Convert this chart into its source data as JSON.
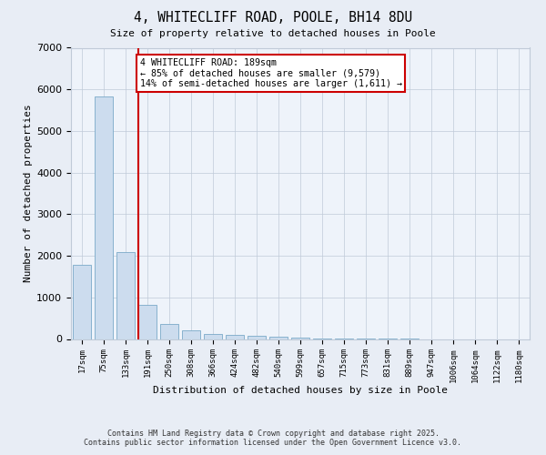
{
  "title": "4, WHITECLIFF ROAD, POOLE, BH14 8DU",
  "subtitle": "Size of property relative to detached houses in Poole",
  "xlabel": "Distribution of detached houses by size in Poole",
  "ylabel": "Number of detached properties",
  "categories": [
    "17sqm",
    "75sqm",
    "133sqm",
    "191sqm",
    "250sqm",
    "308sqm",
    "366sqm",
    "424sqm",
    "482sqm",
    "540sqm",
    "599sqm",
    "657sqm",
    "715sqm",
    "773sqm",
    "831sqm",
    "889sqm",
    "947sqm",
    "1006sqm",
    "1064sqm",
    "1122sqm",
    "1180sqm"
  ],
  "values": [
    1780,
    5820,
    2100,
    810,
    360,
    210,
    120,
    90,
    80,
    55,
    30,
    10,
    5,
    3,
    2,
    1,
    0,
    0,
    0,
    0,
    0
  ],
  "bar_color": "#ccdcee",
  "bar_edge_color": "#7aaac8",
  "highlight_line_color": "#cc0000",
  "highlight_line_xindex": 3,
  "annotation_text": "4 WHITECLIFF ROAD: 189sqm\n← 85% of detached houses are smaller (9,579)\n14% of semi-detached houses are larger (1,611) →",
  "annotation_box_color": "#cc0000",
  "ylim": [
    0,
    7000
  ],
  "yticks": [
    0,
    1000,
    2000,
    3000,
    4000,
    5000,
    6000,
    7000
  ],
  "bg_color": "#e8edf5",
  "plot_bg_color": "#eef3fa",
  "grid_color": "#c0cad8",
  "footer_line1": "Contains HM Land Registry data © Crown copyright and database right 2025.",
  "footer_line2": "Contains public sector information licensed under the Open Government Licence v3.0."
}
